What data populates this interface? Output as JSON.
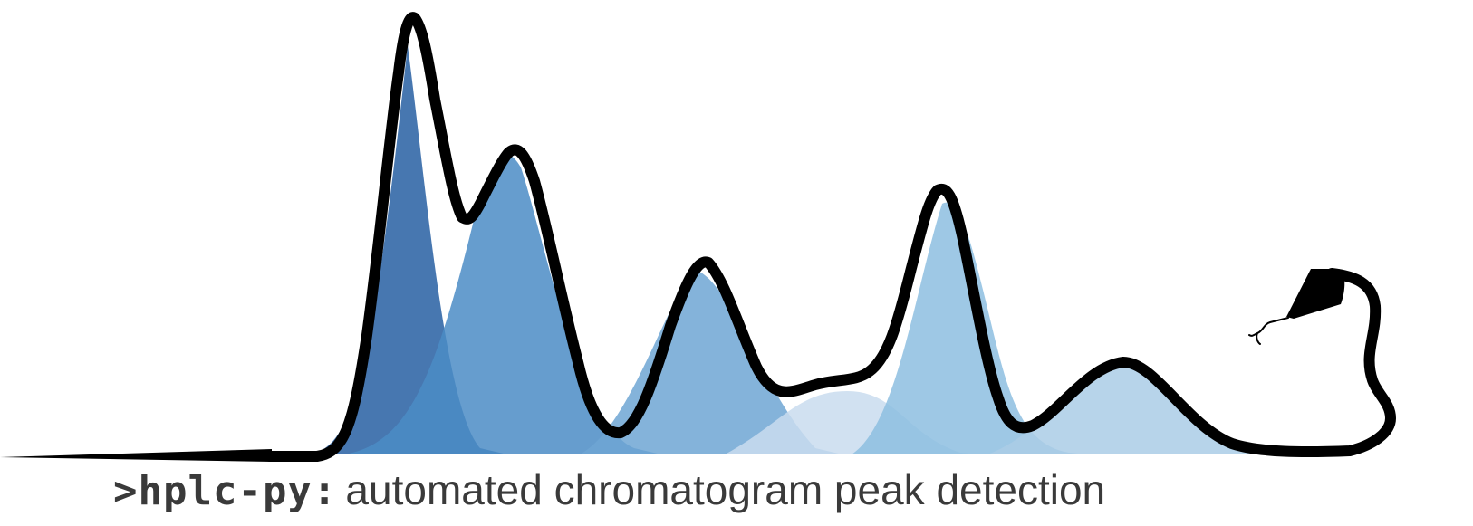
{
  "logo": {
    "prompt": ">hplc-py",
    "colon": ":",
    "tagline": "automated chromatogram peak detection"
  },
  "colors": {
    "outline": "#000000",
    "text": "#3a3a3a",
    "peak_1": "#2d64a5",
    "peak_2": "#4b8cc6",
    "peak_3": "#6ea6d4",
    "peak_4": "#c9dcef",
    "peak_5": "#8dbee0",
    "peak_6": "#aacde6"
  }
}
